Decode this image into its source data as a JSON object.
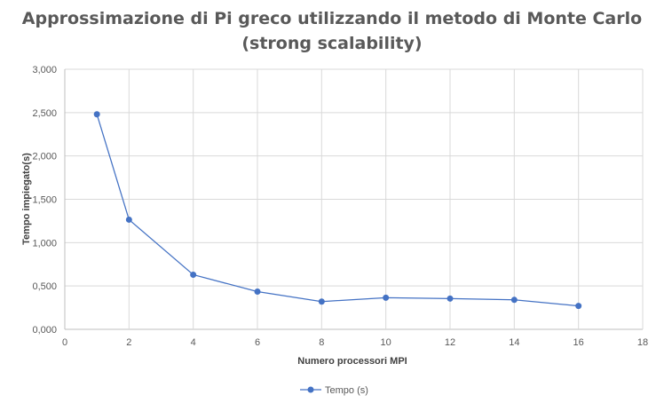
{
  "chart_data": {
    "type": "line",
    "title_line1": "Approssimazione di Pi greco utilizzando il metodo di Monte Carlo",
    "title_line2": "(strong scalability)",
    "xlabel": "Numero processori MPI",
    "ylabel": "Tempo impiegato(s)",
    "xlim": [
      0,
      18
    ],
    "ylim": [
      0,
      3
    ],
    "x_ticks": [
      0,
      2,
      4,
      6,
      8,
      10,
      12,
      14,
      16,
      18
    ],
    "y_ticks": [
      "0,000",
      "0,500",
      "1,000",
      "1,500",
      "2,000",
      "2,500",
      "3,000"
    ],
    "grid": true,
    "legend_position": "bottom",
    "series": [
      {
        "name": "Tempo (s)",
        "color": "#4472C4",
        "x": [
          1,
          2,
          4,
          6,
          8,
          10,
          12,
          14,
          16
        ],
        "y": [
          2.48,
          1.265,
          0.63,
          0.435,
          0.32,
          0.365,
          0.355,
          0.34,
          0.27
        ]
      }
    ]
  }
}
